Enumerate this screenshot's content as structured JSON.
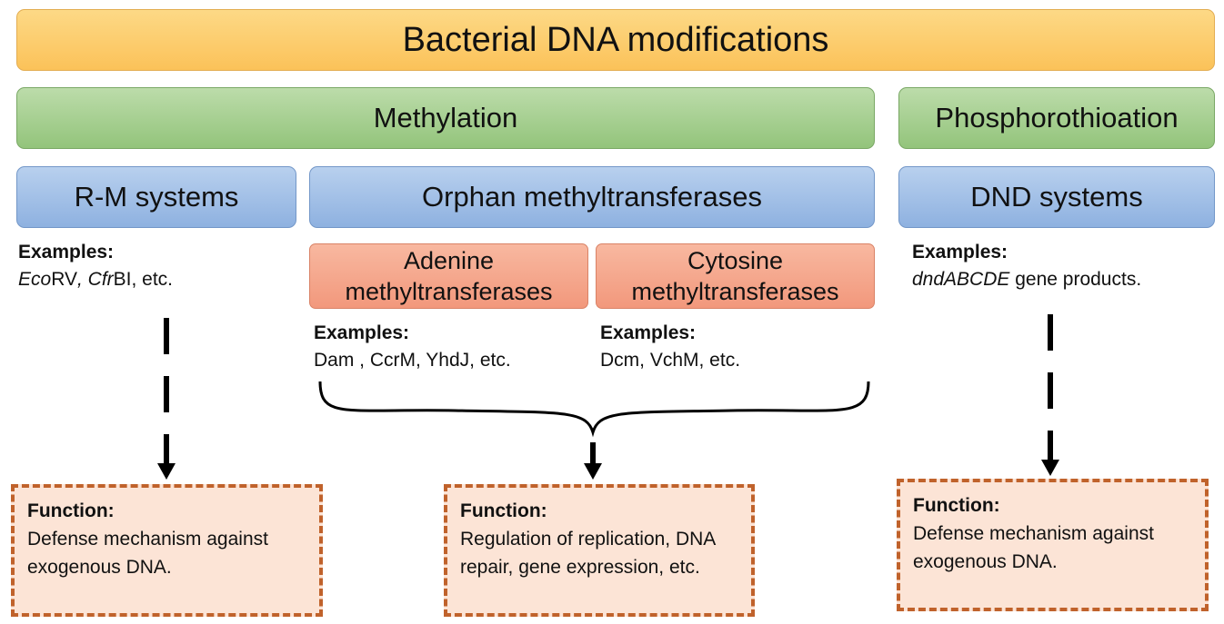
{
  "title": "Bacterial DNA modifications",
  "categories": {
    "methylation": "Methylation",
    "phosphorothioation": "Phosphorothioation"
  },
  "systems": {
    "rm": "R-M systems",
    "orphan": "Orphan methyltransferases",
    "dnd": "DND systems"
  },
  "subtypes": {
    "adenine": "Adenine methyltransferases",
    "cytosine": "Cytosine methyltransferases"
  },
  "examples": {
    "heading": "Examples:",
    "rm": {
      "eco_italic": "Eco",
      "eco_rest": "RV",
      "sep": ", ",
      "cfr_italic": "Cfr",
      "cfr_rest": "BI, etc."
    },
    "adenine": "Dam , CcrM, YhdJ, etc.",
    "cytosine": "Dcm, VchM, etc.",
    "dnd": {
      "gene_italic": "dndABCDE",
      "rest": " gene products."
    }
  },
  "functions": {
    "heading": "Function:",
    "rm": "Defense mechanism against exogenous DNA.",
    "orphan": "Regulation of replication, DNA repair, gene expression, etc.",
    "dnd": "Defense mechanism against exogenous DNA."
  },
  "colors": {
    "title_fill": "#fbc259",
    "methylation_fill": "#93c47b",
    "system_fill": "#8eb1e0",
    "subtype_fill": "#f2987c",
    "function_fill": "#fce4d6",
    "function_border": "#c0622b",
    "arrow": "#000000"
  }
}
